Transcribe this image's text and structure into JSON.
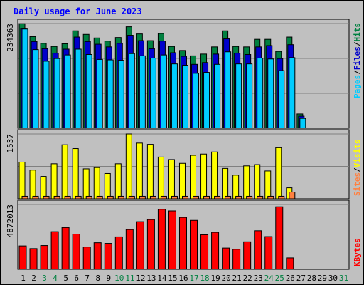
{
  "title": "Daily usage for June 2023",
  "colors": {
    "background": "#c0c0c0",
    "plot": "#c0c0c0",
    "hits": "#008040",
    "files": "#0000cc",
    "pages": "#00ccff",
    "visits": "#ffff00",
    "sites": "#ff8040",
    "kbytes": "#ff0000",
    "title": "#0000ff",
    "weekend": "#008040",
    "grid": "#808080"
  },
  "chart_data": [
    {
      "type": "bar",
      "panel": "hits_files_pages",
      "max_label": "234363",
      "ylim": [
        0,
        234363
      ],
      "grid_lines": 3,
      "legend": {
        "hits": "Hits",
        "files": "Files",
        "pages": "Pages",
        "sep1": "/",
        "sep2": "/"
      },
      "categories": [
        "1",
        "2",
        "3",
        "4",
        "5",
        "6",
        "7",
        "8",
        "9",
        "10",
        "11",
        "12",
        "13",
        "14",
        "15",
        "16",
        "17",
        "18",
        "19",
        "20",
        "21",
        "22",
        "23",
        "24",
        "25",
        "26",
        "27",
        "28",
        "29",
        "30",
        "31"
      ],
      "series": [
        {
          "name": "Hits",
          "values": [
            234000,
            205000,
            190000,
            183000,
            189000,
            218000,
            210000,
            202000,
            195000,
            203000,
            227000,
            211000,
            196000,
            212000,
            183000,
            174000,
            162000,
            166000,
            182000,
            218000,
            183000,
            182000,
            199000,
            199000,
            172000,
            204000,
            32000,
            0,
            0,
            0,
            0
          ]
        },
        {
          "name": "Files",
          "values": [
            223000,
            194000,
            178000,
            168000,
            177000,
            204000,
            194000,
            188000,
            182000,
            190000,
            208000,
            196000,
            178000,
            195000,
            169000,
            161000,
            143000,
            147000,
            166000,
            200000,
            168000,
            165000,
            182000,
            185000,
            156000,
            187000,
            27000,
            0,
            0,
            0,
            0
          ]
        },
        {
          "name": "Pages",
          "values": [
            222000,
            176000,
            150000,
            156000,
            164000,
            177000,
            165000,
            154000,
            153000,
            152000,
            167000,
            162000,
            157000,
            164000,
            144000,
            141000,
            123000,
            125000,
            143000,
            171000,
            144000,
            144000,
            157000,
            155000,
            129000,
            158000,
            22000,
            0,
            0,
            0,
            0
          ]
        }
      ]
    },
    {
      "type": "bar",
      "panel": "visits_sites",
      "max_label": "1537",
      "ylim": [
        0,
        1537
      ],
      "grid_lines": 2,
      "legend": {
        "visits": "Visits",
        "sites": "Sites",
        "sep": "/"
      },
      "categories": [
        "1",
        "2",
        "3",
        "4",
        "5",
        "6",
        "7",
        "8",
        "9",
        "10",
        "11",
        "12",
        "13",
        "14",
        "15",
        "16",
        "17",
        "18",
        "19",
        "20",
        "21",
        "22",
        "23",
        "24",
        "25",
        "26",
        "27",
        "28",
        "29",
        "30",
        "31"
      ],
      "series": [
        {
          "name": "Visits",
          "values": [
            870,
            680,
            530,
            830,
            1280,
            1190,
            710,
            740,
            600,
            830,
            1537,
            1320,
            1290,
            990,
            930,
            840,
            1030,
            1060,
            1110,
            720,
            560,
            780,
            810,
            660,
            1210,
            260,
            0,
            0,
            0,
            0,
            0
          ]
        },
        {
          "name": "Sites",
          "values": [
            60,
            60,
            60,
            60,
            60,
            60,
            60,
            60,
            60,
            60,
            60,
            60,
            60,
            60,
            60,
            60,
            60,
            60,
            60,
            60,
            60,
            60,
            60,
            60,
            60,
            160,
            0,
            0,
            0,
            0,
            0
          ]
        }
      ]
    },
    {
      "type": "bar",
      "panel": "kbytes",
      "max_label": "4872013",
      "ylim": [
        0,
        4872013
      ],
      "grid_lines": 2,
      "legend": {
        "kbytes": "KBytes"
      },
      "categories": [
        "1",
        "2",
        "3",
        "4",
        "5",
        "6",
        "7",
        "8",
        "9",
        "10",
        "11",
        "12",
        "13",
        "14",
        "15",
        "16",
        "17",
        "18",
        "19",
        "20",
        "21",
        "22",
        "23",
        "24",
        "25",
        "26",
        "27",
        "28",
        "29",
        "30",
        "31"
      ],
      "series": [
        {
          "name": "KBytes",
          "values": [
            1760000,
            1560000,
            1790000,
            2830000,
            3140000,
            2650000,
            1680000,
            2000000,
            1950000,
            2440000,
            2990000,
            3580000,
            3740000,
            4510000,
            4390000,
            3900000,
            3680000,
            2600000,
            2780000,
            1600000,
            1510000,
            2070000,
            2900000,
            2460000,
            4700000,
            860000,
            0,
            0,
            0,
            0,
            0
          ]
        }
      ]
    }
  ],
  "weekend_days": [
    "3",
    "4",
    "10",
    "11",
    "17",
    "18",
    "24",
    "25",
    "31"
  ]
}
